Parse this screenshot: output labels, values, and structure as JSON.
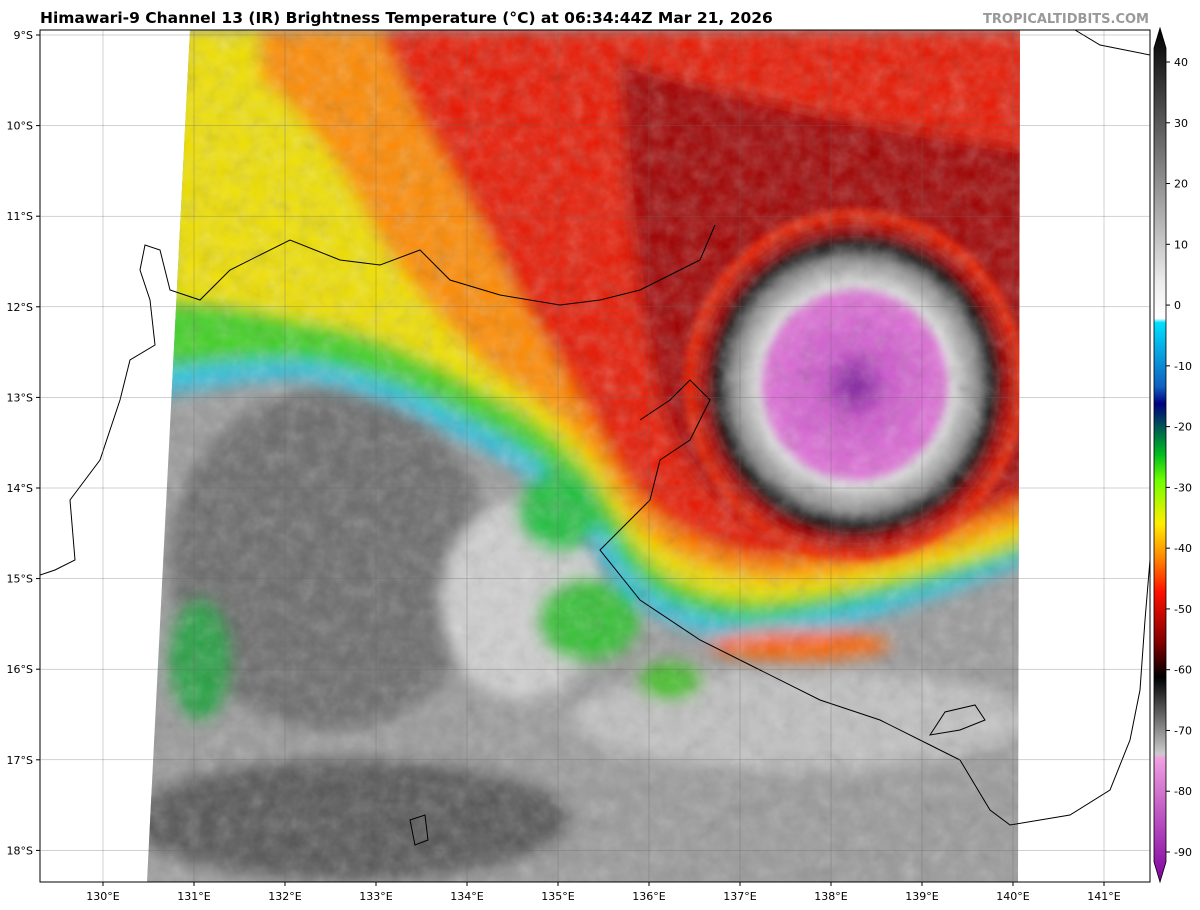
{
  "header": {
    "title": "Himawari-9 Channel 13 (IR) Brightness Temperature (°C) at 06:34:44Z Mar 21, 2026",
    "credit": "TROPICALTIDBITS.COM"
  },
  "map": {
    "lat_labels": [
      "9°S",
      "10°S",
      "11°S",
      "12°S",
      "13°S",
      "14°S",
      "15°S",
      "16°S",
      "17°S",
      "18°S"
    ],
    "lon_labels": [
      "130°E",
      "131°E",
      "132°E",
      "133°E",
      "134°E",
      "135°E",
      "136°E",
      "137°E",
      "138°E",
      "139°E",
      "140°E",
      "141°E"
    ]
  },
  "colorbar": {
    "ticks": [
      40,
      30,
      20,
      10,
      0,
      -10,
      -20,
      -30,
      -40,
      -50,
      -60,
      -70,
      -80,
      -90
    ]
  }
}
